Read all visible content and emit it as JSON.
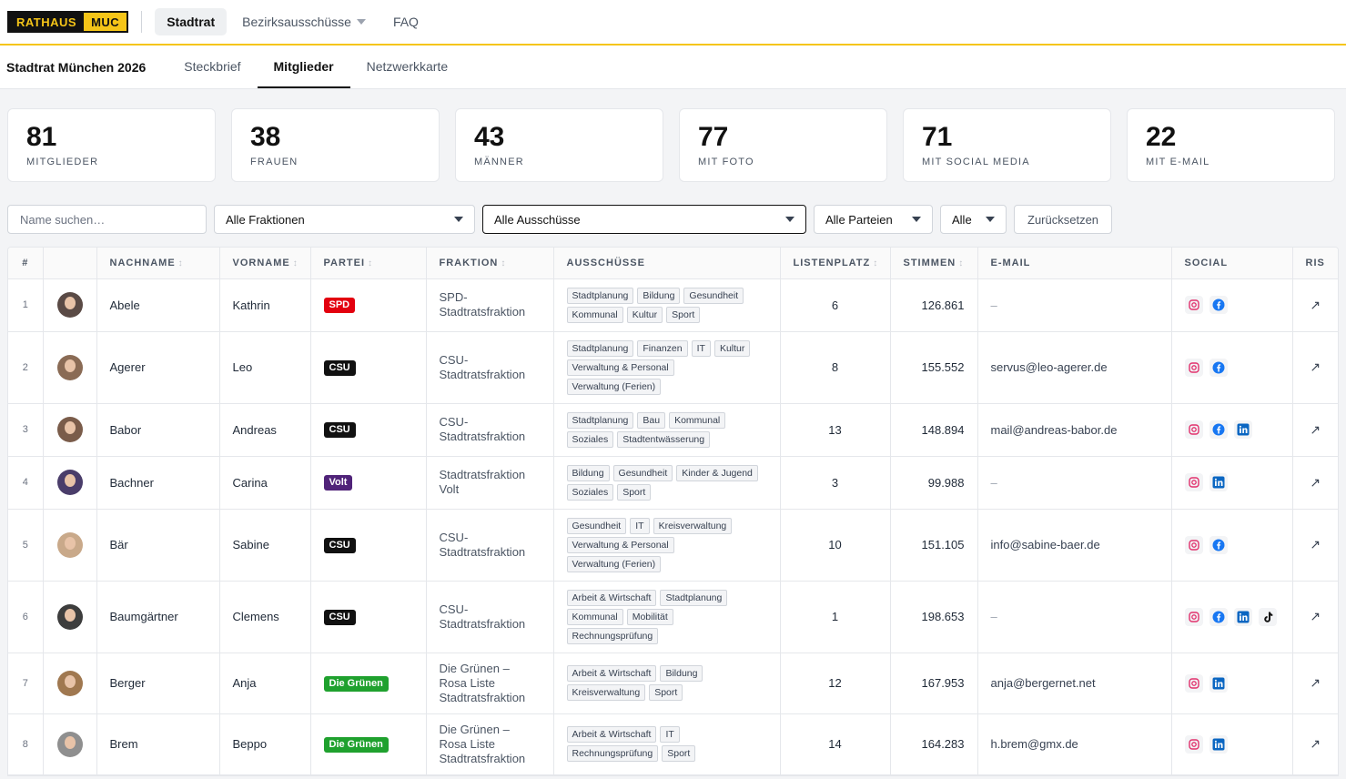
{
  "brand": {
    "part1": "RATHAUS",
    "part2": "MUC"
  },
  "topnav": [
    {
      "label": "Stadtrat",
      "active": true
    },
    {
      "label": "Bezirksausschüsse",
      "dropdown": true
    },
    {
      "label": "FAQ"
    }
  ],
  "subnav": {
    "title": "Stadtrat München 2026",
    "tabs": [
      {
        "label": "Steckbrief"
      },
      {
        "label": "Mitglieder",
        "active": true
      },
      {
        "label": "Netzwerkkarte"
      }
    ]
  },
  "stats": [
    {
      "value": "81",
      "label": "MITGLIEDER"
    },
    {
      "value": "38",
      "label": "FRAUEN"
    },
    {
      "value": "43",
      "label": "MÄNNER"
    },
    {
      "value": "77",
      "label": "MIT FOTO"
    },
    {
      "value": "71",
      "label": "MIT SOCIAL MEDIA"
    },
    {
      "value": "22",
      "label": "MIT E-MAIL"
    }
  ],
  "filters": {
    "search_placeholder": "Name suchen…",
    "fraktion": "Alle Fraktionen",
    "ausschuss": "Alle Ausschüsse",
    "partei": "Alle Parteien",
    "misc": "Alle",
    "reset": "Zurücksetzen"
  },
  "table": {
    "headers": {
      "idx": "#",
      "nachname": "NACHNAME",
      "vorname": "VORNAME",
      "partei": "PARTEI",
      "fraktion": "FRAKTION",
      "ausschuesse": "AUSSCHÜSSE",
      "listenplatz": "LISTENPLATZ",
      "stimmen": "STIMMEN",
      "email": "E-MAIL",
      "social": "SOCIAL",
      "ris": "RIS"
    },
    "sort_glyph": "↕",
    "ris_glyph": "↗",
    "rows": [
      {
        "idx": "1",
        "nachname": "Abele",
        "vorname": "Kathrin",
        "partei": "SPD",
        "fraktion": "SPD-Stadtratsfraktion",
        "ausschuesse": [
          "Stadtplanung",
          "Bildung",
          "Gesundheit",
          "Kommunal",
          "Kultur",
          "Sport"
        ],
        "listenplatz": "6",
        "stimmen": "126.861",
        "email": "–",
        "social": [
          "instagram",
          "facebook"
        ]
      },
      {
        "idx": "2",
        "nachname": "Agerer",
        "vorname": "Leo",
        "partei": "CSU",
        "fraktion": "CSU-Stadtratsfraktion",
        "ausschuesse": [
          "Stadtplanung",
          "Finanzen",
          "IT",
          "Kultur",
          "Verwaltung & Personal",
          "Verwaltung (Ferien)"
        ],
        "listenplatz": "8",
        "stimmen": "155.552",
        "email": "servus@leo-agerer.de",
        "social": [
          "instagram",
          "facebook"
        ]
      },
      {
        "idx": "3",
        "nachname": "Babor",
        "vorname": "Andreas",
        "partei": "CSU",
        "fraktion": "CSU-Stadtratsfraktion",
        "ausschuesse": [
          "Stadtplanung",
          "Bau",
          "Kommunal",
          "Soziales",
          "Stadtentwässerung"
        ],
        "listenplatz": "13",
        "stimmen": "148.894",
        "email": "mail@andreas-babor.de",
        "social": [
          "instagram",
          "facebook",
          "linkedin"
        ]
      },
      {
        "idx": "4",
        "nachname": "Bachner",
        "vorname": "Carina",
        "partei": "Volt",
        "fraktion": "Stadtratsfraktion Volt",
        "ausschuesse": [
          "Bildung",
          "Gesundheit",
          "Kinder & Jugend",
          "Soziales",
          "Sport"
        ],
        "listenplatz": "3",
        "stimmen": "99.988",
        "email": "–",
        "social": [
          "instagram",
          "linkedin"
        ]
      },
      {
        "idx": "5",
        "nachname": "Bär",
        "vorname": "Sabine",
        "partei": "CSU",
        "fraktion": "CSU-Stadtratsfraktion",
        "ausschuesse": [
          "Gesundheit",
          "IT",
          "Kreisverwaltung",
          "Verwaltung & Personal",
          "Verwaltung (Ferien)"
        ],
        "listenplatz": "10",
        "stimmen": "151.105",
        "email": "info@sabine-baer.de",
        "social": [
          "instagram",
          "facebook"
        ]
      },
      {
        "idx": "6",
        "nachname": "Baumgärtner",
        "vorname": "Clemens",
        "partei": "CSU",
        "fraktion": "CSU-Stadtratsfraktion",
        "ausschuesse": [
          "Arbeit & Wirtschaft",
          "Stadtplanung",
          "Kommunal",
          "Mobilität",
          "Rechnungsprüfung"
        ],
        "listenplatz": "1",
        "stimmen": "198.653",
        "email": "–",
        "social": [
          "instagram",
          "facebook",
          "linkedin",
          "tiktok"
        ]
      },
      {
        "idx": "7",
        "nachname": "Berger",
        "vorname": "Anja",
        "partei": "Die Grünen",
        "fraktion": "Die Grünen – Rosa Liste Stadtratsfraktion",
        "ausschuesse": [
          "Arbeit & Wirtschaft",
          "Bildung",
          "Kreisverwaltung",
          "Sport"
        ],
        "listenplatz": "12",
        "stimmen": "167.953",
        "email": "anja@bergernet.net",
        "social": [
          "instagram",
          "linkedin"
        ]
      },
      {
        "idx": "8",
        "nachname": "Brem",
        "vorname": "Beppo",
        "partei": "Die Grünen",
        "fraktion": "Die Grünen – Rosa Liste Stadtratsfraktion",
        "ausschuesse": [
          "Arbeit & Wirtschaft",
          "IT",
          "Rechnungsprüfung",
          "Sport"
        ],
        "listenplatz": "14",
        "stimmen": "164.283",
        "email": "h.brem@gmx.de",
        "social": [
          "instagram",
          "linkedin"
        ]
      }
    ]
  },
  "colors": {
    "accent": "#f5c518",
    "SPD": "#e3000f",
    "CSU": "#111111",
    "Volt": "#502379",
    "Die Grünen": "#1fa12e",
    "instagram": "#e1306c",
    "facebook": "#1877f2",
    "linkedin": "#0a66c2",
    "tiktok": "#111111"
  }
}
